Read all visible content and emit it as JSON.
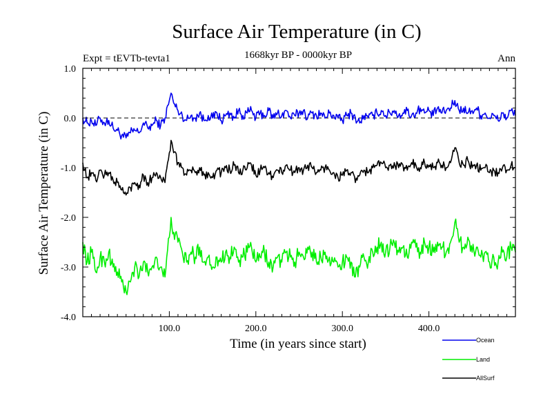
{
  "chart_data": {
    "type": "line",
    "title": "Surface Air Temperature (in C)",
    "subtitle": "1668kyr BP - 0000kyr BP",
    "expt_label": "Expt = tEVTb-tevta1",
    "period_label": "Ann",
    "xlabel": "Time (in years since start)",
    "ylabel": "Surface Air Temperature (in C)",
    "xlim": [
      0,
      500
    ],
    "ylim": [
      -4.0,
      1.0
    ],
    "x_ticks": [
      100,
      200,
      300,
      400
    ],
    "x_tick_labels": [
      "100.0",
      "200.0",
      "300.0",
      "400.0"
    ],
    "y_ticks": [
      -4,
      -3,
      -2,
      -1,
      0,
      1
    ],
    "y_tick_labels": [
      "-4.0",
      "-3.0",
      "-2.0",
      "-1.0",
      "0.0",
      "1.0"
    ],
    "reference_line": 0.0,
    "legend_position": "bottom-right, below plot",
    "series": [
      {
        "name": "Ocean",
        "color": "#0000ee",
        "x": [
          0,
          5,
          10,
          15,
          20,
          25,
          30,
          35,
          40,
          45,
          50,
          55,
          60,
          65,
          70,
          75,
          80,
          85,
          90,
          95,
          100,
          102,
          105,
          110,
          115,
          120,
          125,
          130,
          135,
          140,
          145,
          150,
          155,
          160,
          165,
          170,
          175,
          180,
          185,
          190,
          195,
          200,
          205,
          210,
          215,
          220,
          225,
          230,
          235,
          240,
          245,
          250,
          255,
          260,
          265,
          270,
          275,
          280,
          285,
          290,
          295,
          300,
          305,
          310,
          315,
          320,
          325,
          330,
          335,
          340,
          345,
          350,
          355,
          360,
          365,
          370,
          375,
          380,
          385,
          390,
          395,
          400,
          405,
          410,
          415,
          420,
          425,
          430,
          435,
          440,
          445,
          450,
          455,
          460,
          465,
          470,
          475,
          480,
          485,
          490,
          495,
          500
        ],
        "values": [
          0.0,
          -0.1,
          -0.05,
          -0.15,
          0.0,
          -0.1,
          -0.05,
          -0.2,
          -0.25,
          -0.35,
          -0.4,
          -0.3,
          -0.25,
          -0.3,
          -0.1,
          -0.2,
          -0.15,
          -0.05,
          -0.15,
          0.0,
          0.35,
          0.5,
          0.3,
          0.15,
          0.05,
          -0.05,
          0.05,
          0.0,
          0.1,
          -0.05,
          0.05,
          0.0,
          0.1,
          -0.05,
          0.05,
          0.1,
          0.0,
          0.15,
          0.05,
          0.1,
          0.15,
          0.0,
          0.1,
          0.05,
          0.15,
          0.0,
          0.1,
          0.05,
          0.15,
          0.0,
          0.05,
          0.1,
          0.15,
          0.0,
          0.1,
          0.05,
          0.1,
          0.0,
          0.1,
          0.05,
          0.0,
          -0.05,
          0.05,
          0.1,
          0.0,
          -0.1,
          0.05,
          0.0,
          0.05,
          0.1,
          0.15,
          0.05,
          0.1,
          0.15,
          0.05,
          0.1,
          0.15,
          0.05,
          0.1,
          0.2,
          0.1,
          0.15,
          0.05,
          0.2,
          0.1,
          0.15,
          0.2,
          0.35,
          0.15,
          0.2,
          0.1,
          0.15,
          0.2,
          0.05,
          0.1,
          0.0,
          0.05,
          -0.05,
          0.1,
          0.0,
          0.15,
          0.05
        ]
      },
      {
        "name": "Land",
        "color": "#00ee00",
        "x": [
          0,
          5,
          10,
          15,
          20,
          25,
          30,
          35,
          40,
          45,
          50,
          55,
          60,
          65,
          70,
          75,
          80,
          85,
          90,
          95,
          100,
          102,
          105,
          110,
          115,
          120,
          125,
          130,
          135,
          140,
          145,
          150,
          155,
          160,
          165,
          170,
          175,
          180,
          185,
          190,
          195,
          200,
          205,
          210,
          215,
          220,
          225,
          230,
          235,
          240,
          245,
          250,
          255,
          260,
          265,
          270,
          275,
          280,
          285,
          290,
          295,
          300,
          305,
          310,
          315,
          320,
          325,
          330,
          335,
          340,
          345,
          350,
          355,
          360,
          365,
          370,
          375,
          380,
          385,
          390,
          395,
          400,
          405,
          410,
          415,
          420,
          425,
          430,
          435,
          440,
          445,
          450,
          455,
          460,
          465,
          470,
          475,
          480,
          485,
          490,
          495,
          500
        ],
        "values": [
          -2.5,
          -2.9,
          -2.7,
          -3.1,
          -2.8,
          -2.9,
          -2.7,
          -3.0,
          -3.1,
          -3.3,
          -3.5,
          -3.3,
          -3.0,
          -3.2,
          -2.9,
          -3.1,
          -3.0,
          -2.8,
          -3.0,
          -3.2,
          -2.4,
          -2.0,
          -2.3,
          -2.5,
          -2.7,
          -2.9,
          -2.7,
          -2.8,
          -2.6,
          -2.9,
          -2.8,
          -3.0,
          -2.8,
          -2.9,
          -2.7,
          -2.8,
          -2.6,
          -2.9,
          -2.8,
          -2.7,
          -2.6,
          -2.9,
          -2.8,
          -2.7,
          -2.9,
          -3.0,
          -2.8,
          -2.9,
          -2.7,
          -2.8,
          -2.9,
          -2.7,
          -2.8,
          -2.6,
          -2.7,
          -2.9,
          -2.8,
          -2.7,
          -2.8,
          -2.9,
          -3.0,
          -2.9,
          -2.8,
          -2.9,
          -3.2,
          -3.0,
          -2.8,
          -2.9,
          -2.7,
          -2.6,
          -2.5,
          -2.7,
          -2.6,
          -2.5,
          -2.7,
          -2.6,
          -2.8,
          -2.5,
          -2.6,
          -2.7,
          -2.5,
          -2.6,
          -2.7,
          -2.5,
          -2.6,
          -2.7,
          -2.5,
          -2.1,
          -2.5,
          -2.6,
          -2.4,
          -2.7,
          -2.6,
          -2.8,
          -2.7,
          -2.9,
          -2.8,
          -2.9,
          -2.7,
          -2.8,
          -2.6,
          -2.7
        ]
      },
      {
        "name": "AllSurf",
        "color": "#000000",
        "x": [
          0,
          5,
          10,
          15,
          20,
          25,
          30,
          35,
          40,
          45,
          50,
          55,
          60,
          65,
          70,
          75,
          80,
          85,
          90,
          95,
          100,
          102,
          105,
          110,
          115,
          120,
          125,
          130,
          135,
          140,
          145,
          150,
          155,
          160,
          165,
          170,
          175,
          180,
          185,
          190,
          195,
          200,
          205,
          210,
          215,
          220,
          225,
          230,
          235,
          240,
          245,
          250,
          255,
          260,
          265,
          270,
          275,
          280,
          285,
          290,
          295,
          300,
          305,
          310,
          315,
          320,
          325,
          330,
          335,
          340,
          345,
          350,
          355,
          360,
          365,
          370,
          375,
          380,
          385,
          390,
          395,
          400,
          405,
          410,
          415,
          420,
          425,
          430,
          435,
          440,
          445,
          450,
          455,
          460,
          465,
          470,
          475,
          480,
          485,
          490,
          495,
          500
        ],
        "values": [
          -0.9,
          -1.2,
          -1.1,
          -1.25,
          -1.05,
          -1.15,
          -1.1,
          -1.25,
          -1.3,
          -1.45,
          -1.55,
          -1.4,
          -1.3,
          -1.35,
          -1.15,
          -1.3,
          -1.2,
          -1.1,
          -1.2,
          -1.3,
          -0.7,
          -0.45,
          -0.7,
          -0.9,
          -1.0,
          -1.15,
          -1.05,
          -1.1,
          -1.0,
          -1.15,
          -1.1,
          -1.2,
          -1.05,
          -1.1,
          -1.0,
          -1.05,
          -0.95,
          -1.1,
          -1.05,
          -1.0,
          -0.95,
          -1.15,
          -1.05,
          -1.0,
          -1.1,
          -1.2,
          -1.05,
          -1.1,
          -0.95,
          -1.05,
          -1.1,
          -1.0,
          -1.05,
          -0.95,
          -1.0,
          -1.1,
          -1.05,
          -1.0,
          -1.05,
          -1.1,
          -1.2,
          -1.15,
          -1.05,
          -1.1,
          -1.3,
          -1.15,
          -1.05,
          -1.1,
          -1.0,
          -0.95,
          -0.9,
          -1.0,
          -0.95,
          -0.9,
          -1.0,
          -0.95,
          -1.05,
          -0.9,
          -0.95,
          -1.0,
          -0.9,
          -0.95,
          -1.0,
          -0.9,
          -0.95,
          -1.0,
          -0.9,
          -0.6,
          -0.9,
          -0.95,
          -0.85,
          -1.0,
          -0.95,
          -1.05,
          -1.0,
          -1.1,
          -1.05,
          -1.1,
          -1.0,
          -1.05,
          -0.95,
          -1.0
        ]
      }
    ]
  }
}
